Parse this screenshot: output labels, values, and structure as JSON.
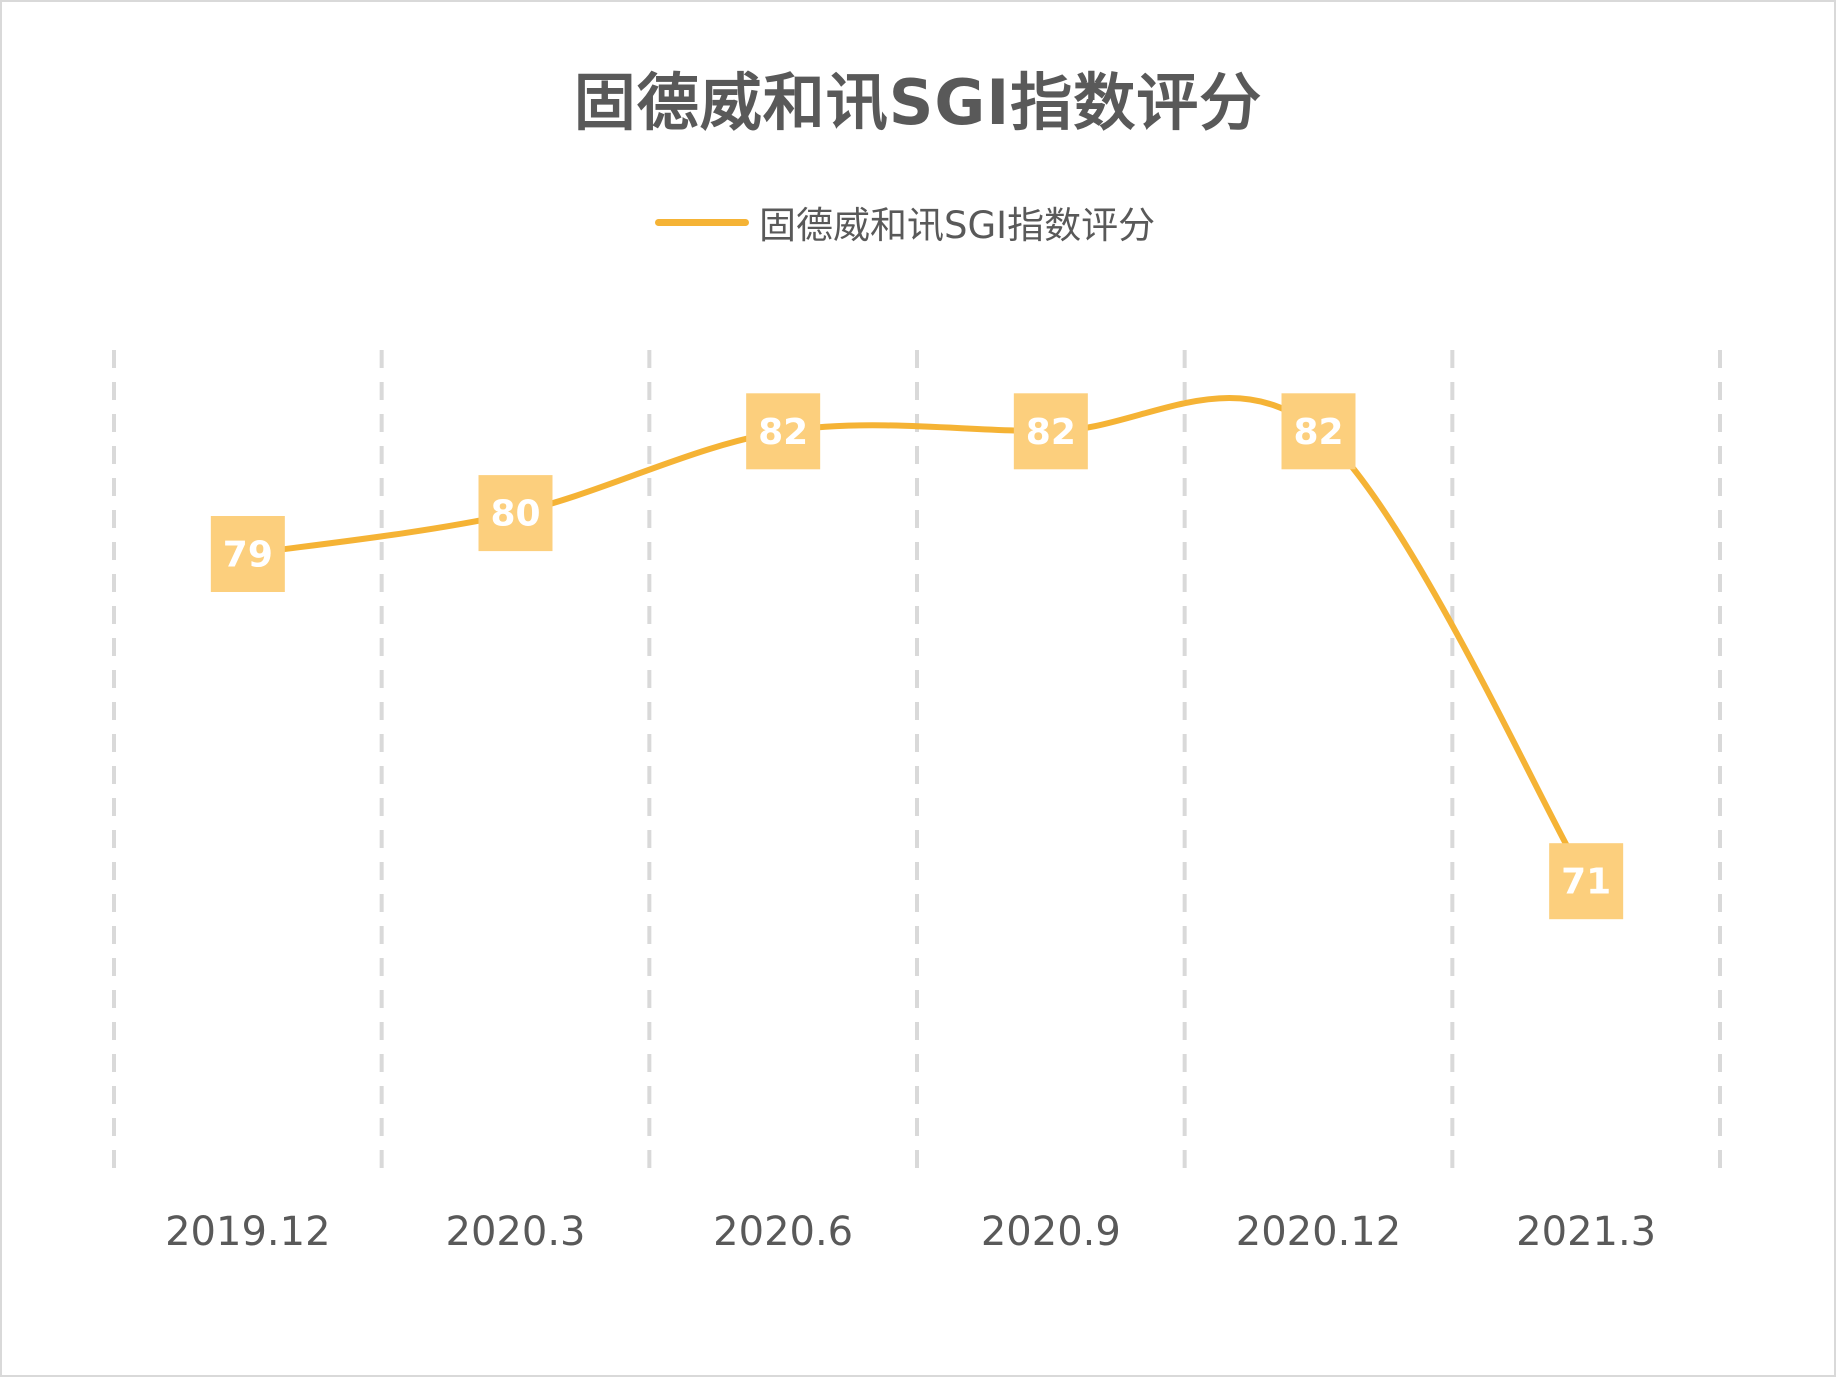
{
  "chart_data": {
    "type": "line",
    "title": "固德威和讯SGI指数评分",
    "categories": [
      "2019.12",
      "2020.3",
      "2020.6",
      "2020.9",
      "2020.12",
      "2021.3"
    ],
    "series": [
      {
        "name": "固德威和讯SGI指数评分",
        "values": [
          79,
          80,
          82,
          82,
          82,
          71
        ],
        "color": "#F5B335",
        "label_color": "#FCCF7D"
      }
    ],
    "xlabel": "",
    "ylabel": "",
    "ylim": [
      60,
      85
    ],
    "smooth": true,
    "grid": "vertical-dashed",
    "legend": "top-center",
    "data_labels": true,
    "y_axis_visible": false
  }
}
